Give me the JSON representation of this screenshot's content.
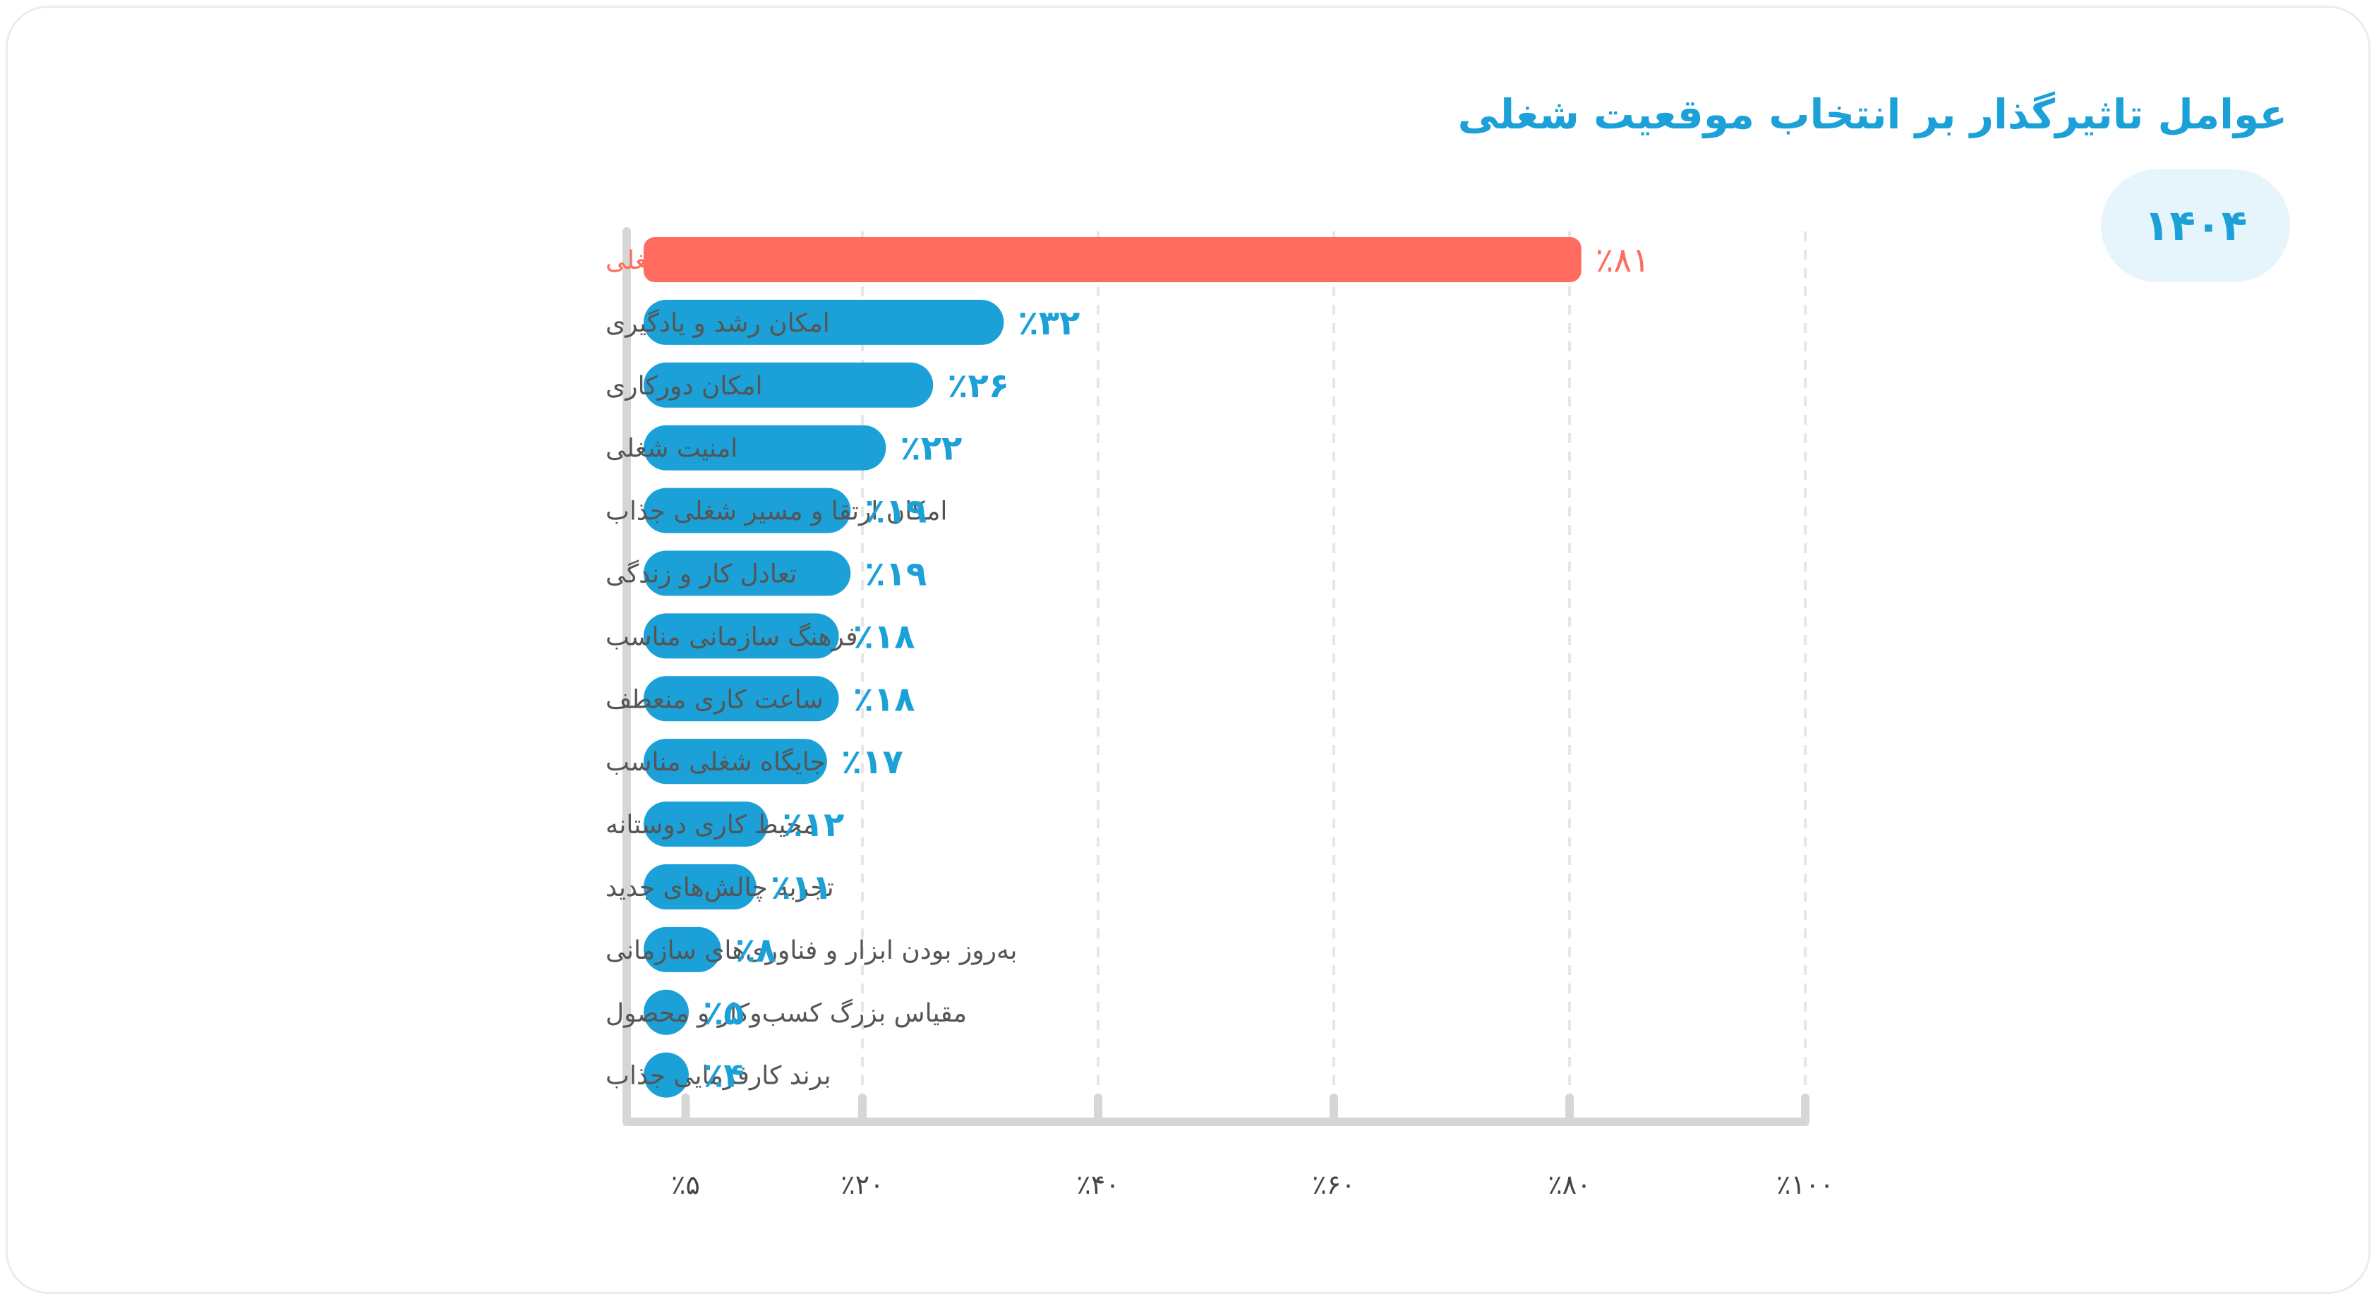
{
  "title": "عوامل تاثیرگذار بر انتخاب موقعیت شغلی",
  "year": "۱۴۰۴",
  "colors": {
    "primary": "#1ba1d8",
    "highlight": "#ff6b5f",
    "axis": "#d6d6d6",
    "grid": "#e6e6e6"
  },
  "chart_data": {
    "type": "bar",
    "orientation": "horizontal",
    "title": "عوامل تاثیرگذار بر انتخاب موقعیت شغلی",
    "categories": [
      "حقوق دریافتی و مزایای شغلی",
      "امکان رشد و یادگیری",
      "امکان دورکاری",
      "امنیت شغلی",
      "امکان ارتقا و مسیر شغلی جذاب",
      "تعادل کار و زندگی",
      "فرهنگ سازمانی مناسب",
      "ساعت کاری منعطف",
      "جایگاه شغلی مناسب",
      "محیط کاری دوستانه",
      "تجربه چالش‌های جدید",
      "به‌روز بودن ابزار و فناوری‌های سازمانی",
      "مقیاس بزرگ کسب‌وکار و محصول",
      "برند کارفرمایی جذاب"
    ],
    "values": [
      81,
      32,
      26,
      22,
      19,
      19,
      18,
      18,
      17,
      12,
      11,
      8,
      5,
      4
    ],
    "value_labels": [
      "٪۸۱",
      "٪۳۲",
      "٪۲۶",
      "٪۲۲",
      "٪۱۹",
      "٪۱۹",
      "٪۱۸",
      "٪۱۸",
      "٪۱۷",
      "٪۱۲",
      "٪۱۱",
      "٪۸",
      "٪۵",
      "٪۴"
    ],
    "highlight_index": 0,
    "x_ticks": [
      5,
      20,
      40,
      60,
      80,
      100
    ],
    "x_tick_labels": [
      "٪۵",
      "٪۲۰",
      "٪۴۰",
      "٪۶۰",
      "٪۸۰",
      "٪۱۰۰"
    ],
    "xlim": [
      0,
      100
    ],
    "grid": "vertical dashed"
  }
}
